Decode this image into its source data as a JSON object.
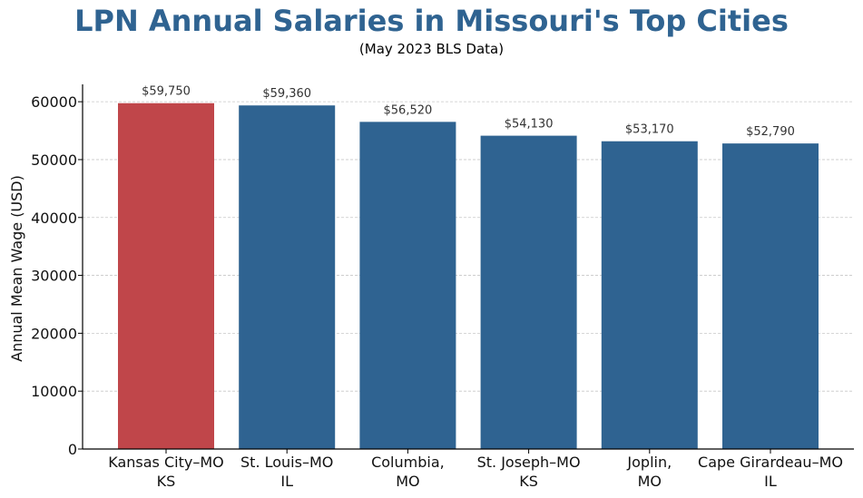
{
  "colors": {
    "title": "#2f6391",
    "bar_default": "#2f6391",
    "bar_highlight": "#c0464a",
    "grid": "#c8c8c8",
    "axis": "#000000"
  },
  "chart_data": {
    "type": "bar",
    "title": "LPN Annual Salaries in Missouri's Top Cities",
    "subtitle": "(May 2023 BLS Data)",
    "xlabel": "",
    "ylabel": "Annual Mean Wage (USD)",
    "ylim": [
      0,
      63000
    ],
    "yticks": [
      0,
      10000,
      20000,
      30000,
      40000,
      50000,
      60000
    ],
    "grid": "horizontal dashed",
    "categories": [
      [
        "Kansas City–MO",
        "KS"
      ],
      [
        "St. Louis–MO",
        "IL"
      ],
      [
        "Columbia,",
        "MO"
      ],
      [
        "St. Joseph–MO",
        "KS"
      ],
      [
        "Joplin,",
        "MO"
      ],
      [
        "Cape Girardeau–MO",
        "IL"
      ]
    ],
    "values": [
      59750,
      59360,
      56520,
      54130,
      53170,
      52790
    ],
    "data_labels": [
      "$59,750",
      "$59,360",
      "$56,520",
      "$54,130",
      "$53,170",
      "$52,790"
    ],
    "highlight_index": 0
  }
}
